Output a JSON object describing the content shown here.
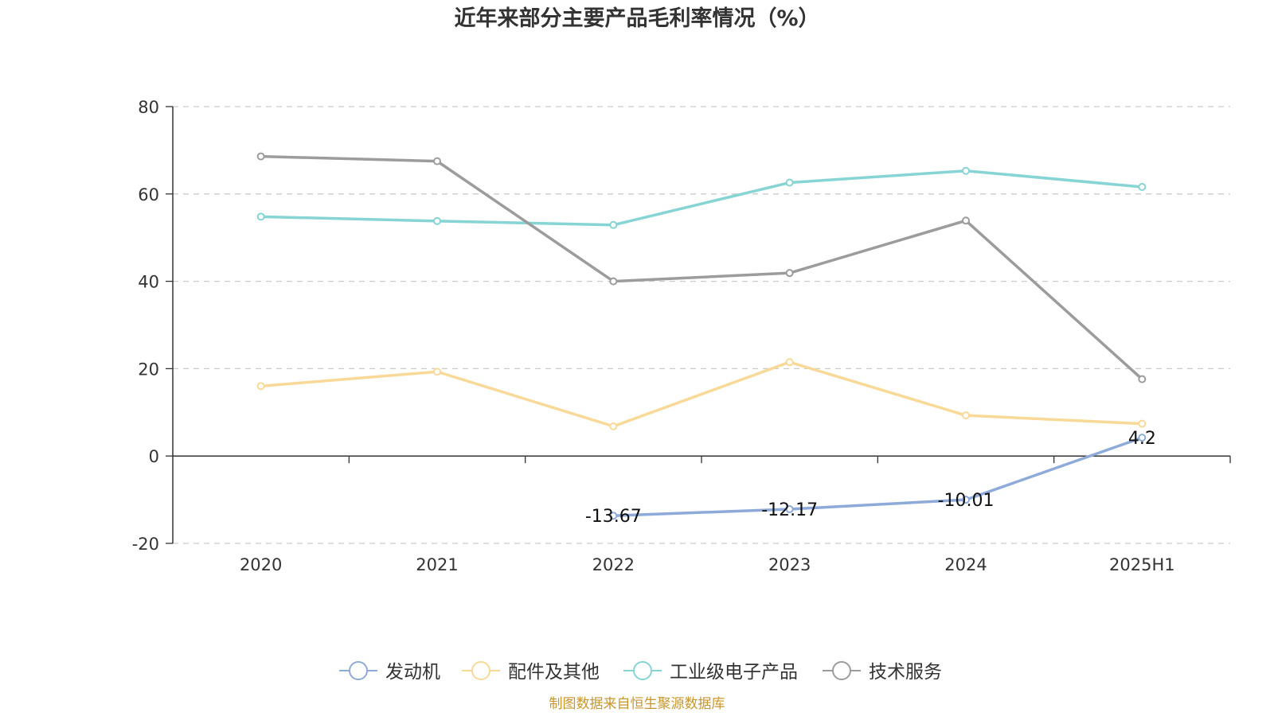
{
  "chart_data": {
    "type": "line",
    "title": "近年来部分主要产品毛利率情况（%）",
    "categories": [
      "2020",
      "2021",
      "2022",
      "2023",
      "2024",
      "2025H1"
    ],
    "ylim": [
      -20,
      80
    ],
    "yticks": [
      80,
      60,
      40,
      20,
      0,
      -20
    ],
    "grid": true,
    "legend_position": "bottom",
    "series": [
      {
        "name": "发动机",
        "color": "#8eaad9",
        "values": [
          null,
          null,
          -13.67,
          -12.17,
          -10.01,
          4.2
        ],
        "labels": [
          "",
          "",
          "-13.67",
          "-12.17",
          "-10.01",
          "4.2"
        ]
      },
      {
        "name": "配件及其他",
        "color": "#f9d998",
        "values": [
          16.0,
          19.3,
          6.8,
          21.5,
          9.3,
          7.4
        ]
      },
      {
        "name": "工业级电子产品",
        "color": "#86d4d4",
        "values": [
          54.8,
          53.8,
          52.9,
          62.6,
          65.3,
          61.6
        ]
      },
      {
        "name": "技术服务",
        "color": "#9c9c9c",
        "values": [
          68.6,
          67.5,
          40.0,
          41.9,
          53.9,
          17.6
        ]
      }
    ]
  },
  "source": "制图数据来自恒生聚源数据库"
}
